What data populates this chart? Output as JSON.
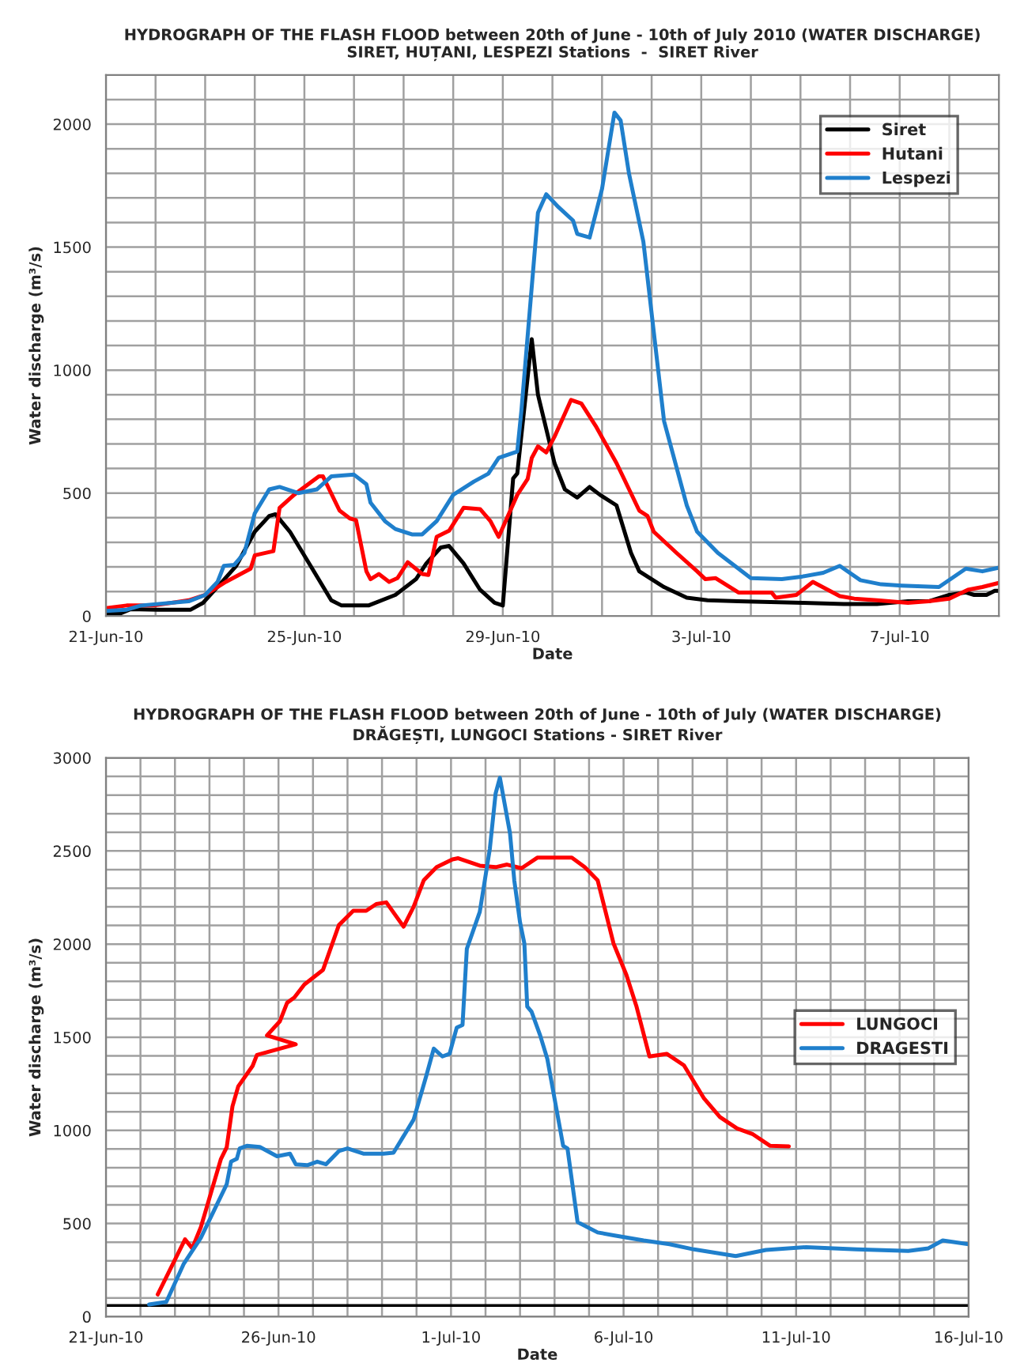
{
  "chart_data": [
    {
      "type": "line",
      "title": "HYDROGRAPH OF THE FLASH FLOOD between 20th of June - 10th of July 2010 (WATER DISCHARGE)",
      "subtitle": "SIRET, HUȚANI, LESPEZI Stations  -  SIRET River",
      "xlabel": "Date",
      "ylabel": "Water discharge (m³/s)",
      "xlim": [
        "2010-06-21",
        "2010-07-09"
      ],
      "ylim": [
        0,
        2200
      ],
      "xticks": [
        {
          "value": "2010-06-21",
          "label": "21-Jun-10"
        },
        {
          "value": "2010-06-22",
          "label": null
        },
        {
          "value": "2010-06-23",
          "label": null
        },
        {
          "value": "2010-06-24",
          "label": null
        },
        {
          "value": "2010-06-25",
          "label": "25-Jun-10"
        },
        {
          "value": "2010-06-26",
          "label": null
        },
        {
          "value": "2010-06-27",
          "label": null
        },
        {
          "value": "2010-06-28",
          "label": null
        },
        {
          "value": "2010-06-29",
          "label": "29-Jun-10"
        },
        {
          "value": "2010-06-30",
          "label": null
        },
        {
          "value": "2010-07-01",
          "label": null
        },
        {
          "value": "2010-07-02",
          "label": null
        },
        {
          "value": "2010-07-03",
          "label": "3-Jul-10"
        },
        {
          "value": "2010-07-04",
          "label": null
        },
        {
          "value": "2010-07-05",
          "label": null
        },
        {
          "value": "2010-07-06",
          "label": null
        },
        {
          "value": "2010-07-07",
          "label": "7-Jul-10"
        },
        {
          "value": "2010-07-08",
          "label": null
        }
      ],
      "yticks": [
        0,
        {
          "value": 100,
          "label": null
        },
        {
          "value": 200,
          "label": null
        },
        {
          "value": 300,
          "label": null
        },
        {
          "value": 400,
          "label": null
        },
        500,
        {
          "value": 600,
          "label": null
        },
        {
          "value": 700,
          "label": null
        },
        {
          "value": 800,
          "label": null
        },
        {
          "value": 900,
          "label": null
        },
        1000,
        {
          "value": 1100,
          "label": null
        },
        {
          "value": 1200,
          "label": null
        },
        {
          "value": 1300,
          "label": null
        },
        {
          "value": 1400,
          "label": null
        },
        1500,
        {
          "value": 1600,
          "label": null
        },
        {
          "value": 1700,
          "label": null
        },
        {
          "value": 1800,
          "label": null
        },
        {
          "value": 1900,
          "label": null
        },
        2000,
        {
          "value": 2100,
          "label": null
        }
      ],
      "grid": true,
      "legend": "top right",
      "line_style": "solid",
      "marker": "none",
      "series": [
        {
          "name": "Siret",
          "color": "#000000",
          "x": [
            "2010-06-21T00:00",
            "2010-06-21T07:00",
            "2010-06-21T12:00",
            "2010-06-22T01:00",
            "2010-06-22T17:00",
            "2010-06-22T23:00",
            "2010-06-23T07:00",
            "2010-06-23T15:00",
            "2010-06-24T00:00",
            "2010-06-24T07:00",
            "2010-06-24T10:00",
            "2010-06-24T17:00",
            "2010-06-25T03:00",
            "2010-06-25T13:00",
            "2010-06-25T18:00",
            "2010-06-26T07:00",
            "2010-06-26T20:00",
            "2010-06-27T06:00",
            "2010-06-27T11:00",
            "2010-06-27T18:00",
            "2010-06-27T22:00",
            "2010-06-28T05:00",
            "2010-06-28T13:00",
            "2010-06-28T20:00",
            "2010-06-29T00:00",
            "2010-06-29T05:00",
            "2010-06-29T07:00",
            "2010-06-29T14:00",
            "2010-06-29T17:00",
            "2010-06-30T01:00",
            "2010-06-30T06:00",
            "2010-06-30T12:00",
            "2010-06-30T18:00",
            "2010-06-30T23:00",
            "2010-07-01T07:00",
            "2010-07-01T14:00",
            "2010-07-01T18:00",
            "2010-07-02T06:00",
            "2010-07-02T17:00",
            "2010-07-03T03:00",
            "2010-07-03T18:00",
            "2010-07-05T01:00",
            "2010-07-05T21:00",
            "2010-07-06T13:00",
            "2010-07-07T04:00",
            "2010-07-07T14:00",
            "2010-07-08T00:00",
            "2010-07-08T08:00",
            "2010-07-08T12:00",
            "2010-07-08T18:00",
            "2010-07-08T22:00",
            "2010-07-09T00:00"
          ],
          "values": [
            11,
            11,
            28,
            26,
            26,
            54,
            128,
            204,
            343,
            407,
            414,
            343,
            204,
            64,
            43,
            43,
            86,
            150,
            214,
            279,
            285,
            214,
            107,
            54,
            43,
            560,
            580,
            1126,
            900,
            622,
            515,
            482,
            525,
            493,
            450,
            257,
            182,
            118,
            75,
            64,
            60,
            54,
            49,
            49,
            60,
            60,
            86,
            96,
            86,
            86,
            103,
            103
          ]
        },
        {
          "name": "Hutani",
          "color": "#ff0000",
          "x": [
            "2010-06-21T00:00",
            "2010-06-21T10:00",
            "2010-06-21T23:00",
            "2010-06-22T16:00",
            "2010-06-23T00:00",
            "2010-06-23T10:00",
            "2010-06-23T22:00",
            "2010-06-24T00:00",
            "2010-06-24T09:00",
            "2010-06-24T12:00",
            "2010-06-24T19:00",
            "2010-06-25T07:00",
            "2010-06-25T09:00",
            "2010-06-25T17:00",
            "2010-06-25T22:00",
            "2010-06-26T01:00",
            "2010-06-26T06:00",
            "2010-06-26T08:00",
            "2010-06-26T12:00",
            "2010-06-26T17:00",
            "2010-06-26T21:00",
            "2010-06-27T02:00",
            "2010-06-27T09:00",
            "2010-06-27T12:00",
            "2010-06-27T16:00",
            "2010-06-27T22:00",
            "2010-06-28T05:00",
            "2010-06-28T13:00",
            "2010-06-28T18:00",
            "2010-06-28T22:00",
            "2010-06-29T07:00",
            "2010-06-29T12:00",
            "2010-06-29T14:00",
            "2010-06-29T17:00",
            "2010-06-29T21:00",
            "2010-06-30T01:00",
            "2010-06-30T09:00",
            "2010-06-30T14:00",
            "2010-06-30T21:00",
            "2010-07-01T07:00",
            "2010-07-01T18:00",
            "2010-07-01T22:00",
            "2010-07-02T01:00",
            "2010-07-02T12:00",
            "2010-07-02T22:00",
            "2010-07-03T02:00",
            "2010-07-03T07:00",
            "2010-07-03T18:00",
            "2010-07-04T10:00",
            "2010-07-04T12:00",
            "2010-07-04T22:00",
            "2010-07-05T06:00",
            "2010-07-05T19:00",
            "2010-07-06T02:00",
            "2010-07-06T13:00",
            "2010-07-07T04:00",
            "2010-07-07T14:00",
            "2010-07-08T00:00",
            "2010-07-08T09:00",
            "2010-07-08T16:00",
            "2010-07-09T00:00"
          ],
          "values": [
            32,
            43,
            43,
            64,
            86,
            139,
            193,
            247,
            264,
            440,
            493,
            568,
            568,
            429,
            397,
            390,
            182,
            150,
            171,
            139,
            154,
            219,
            171,
            167,
            322,
            347,
            440,
            435,
            386,
            322,
            493,
            557,
            643,
            690,
            665,
            729,
            879,
            864,
            772,
            622,
            429,
            407,
            343,
            257,
            182,
            150,
            154,
            96,
            96,
            75,
            86,
            139,
            81,
            71,
            64,
            54,
            60,
            71,
            107,
            118,
            135
          ]
        },
        {
          "name": "Lespezi",
          "color": "#1f7fcc",
          "x": [
            "2010-06-21T00:00",
            "2010-06-21T10:00",
            "2010-06-21T17:00",
            "2010-06-22T16:00",
            "2010-06-23T00:00",
            "2010-06-23T06:00",
            "2010-06-23T09:00",
            "2010-06-23T14:00",
            "2010-06-23T19:00",
            "2010-06-24T00:00",
            "2010-06-24T07:00",
            "2010-06-24T12:00",
            "2010-06-24T21:00",
            "2010-06-25T06:00",
            "2010-06-25T13:00",
            "2010-06-26T00:00",
            "2010-06-26T06:00",
            "2010-06-26T08:00",
            "2010-06-26T15:00",
            "2010-06-26T20:00",
            "2010-06-27T04:00",
            "2010-06-27T09:00",
            "2010-06-27T16:00",
            "2010-06-28T00:00",
            "2010-06-28T10:00",
            "2010-06-28T17:00",
            "2010-06-28T22:00",
            "2010-06-29T07:00",
            "2010-06-29T09:00",
            "2010-06-29T17:00",
            "2010-06-29T21:00",
            "2010-06-30T03:00",
            "2010-06-30T10:00",
            "2010-06-30T12:00",
            "2010-06-30T18:00",
            "2010-07-01T00:00",
            "2010-07-01T06:00",
            "2010-07-01T09:00",
            "2010-07-01T13:00",
            "2010-07-01T20:00",
            "2010-07-02T06:00",
            "2010-07-02T17:00",
            "2010-07-02T22:00",
            "2010-07-03T08:00",
            "2010-07-04T00:00",
            "2010-07-04T15:00",
            "2010-07-05T01:00",
            "2010-07-05T11:00",
            "2010-07-05T19:00",
            "2010-07-06T05:00",
            "2010-07-06T15:00",
            "2010-07-07T01:00",
            "2010-07-07T19:00",
            "2010-07-08T08:00",
            "2010-07-08T16:00",
            "2010-07-09T00:00"
          ],
          "values": [
            21,
            26,
            43,
            60,
            86,
            139,
            204,
            208,
            257,
            418,
            515,
            525,
            500,
            515,
            568,
            575,
            536,
            461,
            386,
            354,
            332,
            332,
            386,
            493,
            547,
            579,
            643,
            669,
            836,
            1640,
            1715,
            1662,
            1608,
            1554,
            1539,
            1737,
            2047,
            2015,
            1801,
            1522,
            793,
            450,
            343,
            257,
            154,
            150,
            161,
            176,
            204,
            146,
            129,
            124,
            118,
            193,
            182,
            197
          ]
        }
      ]
    },
    {
      "type": "line",
      "title": "HYDROGRAPH OF THE FLASH FLOOD between 20th of June - 10th of July (WATER DISCHARGE)",
      "subtitle": "DRĂGEȘTI, LUNGOCI Stations - SIRET River",
      "xlabel": "Date",
      "ylabel": "Water discharge (m³/s)",
      "xlim": [
        "2010-06-21",
        "2010-07-16"
      ],
      "ylim": [
        0,
        3000
      ],
      "xticks": [
        {
          "value": "2010-06-21",
          "label": "21-Jun-10"
        },
        {
          "value": "2010-06-22",
          "label": null
        },
        {
          "value": "2010-06-23",
          "label": null
        },
        {
          "value": "2010-06-24",
          "label": null
        },
        {
          "value": "2010-06-25",
          "label": null
        },
        {
          "value": "2010-06-26",
          "label": "26-Jun-10"
        },
        {
          "value": "2010-06-27",
          "label": null
        },
        {
          "value": "2010-06-28",
          "label": null
        },
        {
          "value": "2010-06-29",
          "label": null
        },
        {
          "value": "2010-06-30",
          "label": null
        },
        {
          "value": "2010-07-01",
          "label": "1-Jul-10"
        },
        {
          "value": "2010-07-02",
          "label": null
        },
        {
          "value": "2010-07-03",
          "label": null
        },
        {
          "value": "2010-07-04",
          "label": null
        },
        {
          "value": "2010-07-05",
          "label": null
        },
        {
          "value": "2010-07-06",
          "label": "6-Jul-10"
        },
        {
          "value": "2010-07-07",
          "label": null
        },
        {
          "value": "2010-07-08",
          "label": null
        },
        {
          "value": "2010-07-09",
          "label": null
        },
        {
          "value": "2010-07-10",
          "label": null
        },
        {
          "value": "2010-07-11",
          "label": "11-Jul-10"
        },
        {
          "value": "2010-07-12",
          "label": null
        },
        {
          "value": "2010-07-13",
          "label": null
        },
        {
          "value": "2010-07-14",
          "label": null
        },
        {
          "value": "2010-07-15",
          "label": null
        },
        {
          "value": "2010-07-16",
          "label": "16-Jul-10"
        }
      ],
      "yticks": [
        0,
        {
          "value": 100,
          "label": null
        },
        {
          "value": 200,
          "label": null
        },
        {
          "value": 300,
          "label": null
        },
        {
          "value": 400,
          "label": null
        },
        500,
        {
          "value": 600,
          "label": null
        },
        {
          "value": 700,
          "label": null
        },
        {
          "value": 800,
          "label": null
        },
        {
          "value": 900,
          "label": null
        },
        1000,
        {
          "value": 1100,
          "label": null
        },
        {
          "value": 1200,
          "label": null
        },
        {
          "value": 1300,
          "label": null
        },
        {
          "value": 1400,
          "label": null
        },
        1500,
        {
          "value": 1600,
          "label": null
        },
        {
          "value": 1700,
          "label": null
        },
        {
          "value": 1800,
          "label": null
        },
        {
          "value": 1900,
          "label": null
        },
        2000,
        {
          "value": 2100,
          "label": null
        },
        {
          "value": 2200,
          "label": null
        },
        {
          "value": 2300,
          "label": null
        },
        {
          "value": 2400,
          "label": null
        },
        2500,
        {
          "value": 2600,
          "label": null
        },
        {
          "value": 2700,
          "label": null
        },
        {
          "value": 2800,
          "label": null
        },
        {
          "value": 2900,
          "label": null
        },
        3000
      ],
      "grid": true,
      "legend": "right",
      "line_style": "solid",
      "marker": "none",
      "ref_lines": [
        {
          "axis": "y",
          "value": 60,
          "color": "#000000"
        }
      ],
      "series": [
        {
          "name": "LUNGOCI",
          "color": "#ff0000",
          "x": [
            "2010-06-22T12:00",
            "2010-06-23T07:00",
            "2010-06-23T12:00",
            "2010-06-23T18:00",
            "2010-06-24T08:00",
            "2010-06-24T12:00",
            "2010-06-24T16:00",
            "2010-06-24T20:00",
            "2010-06-25T06:00",
            "2010-06-25T09:00",
            "2010-06-26T12:00",
            "2010-06-25T16:00",
            "2010-06-26T01:00",
            "2010-06-26T06:00",
            "2010-06-26T11:00",
            "2010-06-26T18:00",
            "2010-06-27T07:00",
            "2010-06-27T18:00",
            "2010-06-28T04:00",
            "2010-06-28T13:00",
            "2010-06-28T20:00",
            "2010-06-29T03:00",
            "2010-06-29T15:00",
            "2010-06-29T22:00",
            "2010-06-30T05:00",
            "2010-06-30T14:00",
            "2010-07-01T01:00",
            "2010-07-01T05:00",
            "2010-07-01T20:00",
            "2010-07-02T07:00",
            "2010-07-02T15:00",
            "2010-07-03T01:00",
            "2010-07-03T12:00",
            "2010-07-04T12:00",
            "2010-07-04T21:00",
            "2010-07-05T06:00",
            "2010-07-05T17:00",
            "2010-07-06T02:00",
            "2010-07-06T09:00",
            "2010-07-06T18:00",
            "2010-07-07T06:00",
            "2010-07-07T18:00",
            "2010-07-08T08:00",
            "2010-07-08T19:00",
            "2010-07-09T07:00",
            "2010-07-09T18:00",
            "2010-07-10T06:00",
            "2010-07-10T19:00"
          ],
          "values": [
            119,
            415,
            367,
            480,
            847,
            909,
            1129,
            1236,
            1346,
            1405,
            1462,
            1510,
            1586,
            1685,
            1713,
            1783,
            1862,
            2102,
            2179,
            2179,
            2215,
            2224,
            2094,
            2201,
            2342,
            2413,
            2455,
            2461,
            2421,
            2413,
            2427,
            2407,
            2464,
            2464,
            2413,
            2342,
            2004,
            1834,
            1665,
            1397,
            1411,
            1349,
            1171,
            1072,
            1010,
            979,
            917,
            914
          ]
        },
        {
          "name": "DRAGESTI",
          "color": "#1f7fcc",
          "x": [
            "2010-06-22T06:00",
            "2010-06-22T18:00",
            "2010-06-23T06:00",
            "2010-06-23T18:00",
            "2010-06-24T12:00",
            "2010-06-24T15:00",
            "2010-06-24T19:00",
            "2010-06-24T21:00",
            "2010-06-25T02:00",
            "2010-06-25T11:00",
            "2010-06-25T23:00",
            "2010-06-26T08:00",
            "2010-06-26T12:00",
            "2010-06-26T20:00",
            "2010-06-27T03:00",
            "2010-06-27T09:00",
            "2010-06-27T18:00",
            "2010-06-28T00:00",
            "2010-06-28T11:00",
            "2010-06-29T01:00",
            "2010-06-29T08:00",
            "2010-06-29T22:00",
            "2010-06-30T07:00",
            "2010-06-30T12:00",
            "2010-06-30T18:00",
            "2010-06-30T23:00",
            "2010-07-01T04:00",
            "2010-07-01T08:00",
            "2010-07-01T11:00",
            "2010-07-01T20:00",
            "2010-07-02T03:00",
            "2010-07-02T07:00",
            "2010-07-02T10:00",
            "2010-07-02T17:00",
            "2010-07-02T20:00",
            "2010-07-03T00:00",
            "2010-07-03T03:00",
            "2010-07-03T05:00",
            "2010-07-03T08:00",
            "2010-07-03T14:00",
            "2010-07-03T19:00",
            "2010-07-03T23:00",
            "2010-07-04T06:00",
            "2010-07-04T09:00",
            "2010-07-04T16:00",
            "2010-07-05T06:00",
            "2010-07-05T17:00",
            "2010-07-06T14:00",
            "2010-07-07T08:00",
            "2010-07-08T01:00",
            "2010-07-09T06:00",
            "2010-07-10T03:00",
            "2010-07-11T07:00",
            "2010-07-12T18:00",
            "2010-07-14T06:00",
            "2010-07-14T20:00",
            "2010-07-15T06:00",
            "2010-07-16T00:00"
          ],
          "values": [
            65,
            79,
            282,
            423,
            711,
            832,
            847,
            903,
            917,
            911,
            861,
            875,
            818,
            813,
            832,
            818,
            889,
            903,
            875,
            875,
            880,
            1058,
            1298,
            1439,
            1397,
            1411,
            1552,
            1566,
            1975,
            2173,
            2512,
            2808,
            2893,
            2596,
            2342,
            2117,
            2004,
            1665,
            1637,
            1510,
            1383,
            1213,
            917,
            903,
            508,
            452,
            437,
            409,
            389,
            361,
            325,
            358,
            373,
            361,
            353,
            367,
            409,
            389
          ]
        }
      ]
    }
  ]
}
